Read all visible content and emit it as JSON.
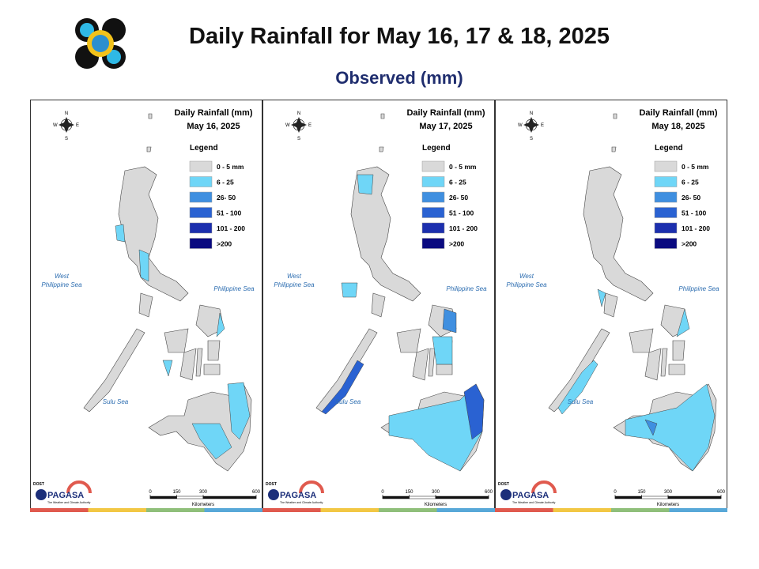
{
  "header": {
    "title": "Daily Rainfall for May 16, 17 & 18, 2025",
    "subtitle": "Observed (mm)"
  },
  "panels": [
    {
      "title": "Daily Rainfall (mm)",
      "date": "May 16, 2025"
    },
    {
      "title": "Daily Rainfall (mm)",
      "date": "May 17, 2025"
    },
    {
      "title": "Daily Rainfall (mm)",
      "date": "May 18, 2025"
    }
  ],
  "legend": {
    "title": "Legend",
    "items": [
      {
        "label": "0 - 5 mm",
        "color": "#d9d9d9"
      },
      {
        "label": "6 - 25",
        "color": "#6fd6f7"
      },
      {
        "label": "26- 50",
        "color": "#3f8fe0"
      },
      {
        "label": "51 - 100",
        "color": "#2a62d2"
      },
      {
        "label": "101 - 200",
        "color": "#1c2fae"
      },
      {
        "label": ">200",
        "color": "#0a0a80"
      }
    ]
  },
  "compass": {
    "n": "N",
    "e": "E",
    "w": "W",
    "s": "S"
  },
  "seas": {
    "west": "West Philippine Sea",
    "east": "Philippine Sea",
    "sulu": "Sulu Sea"
  },
  "scale": {
    "ticks": [
      0,
      150,
      300,
      600
    ],
    "unit": "Kilometers"
  },
  "logo": {
    "agency": "DOST",
    "name": "PAGASA",
    "tagline": "The Weather and Climate Authority"
  }
}
